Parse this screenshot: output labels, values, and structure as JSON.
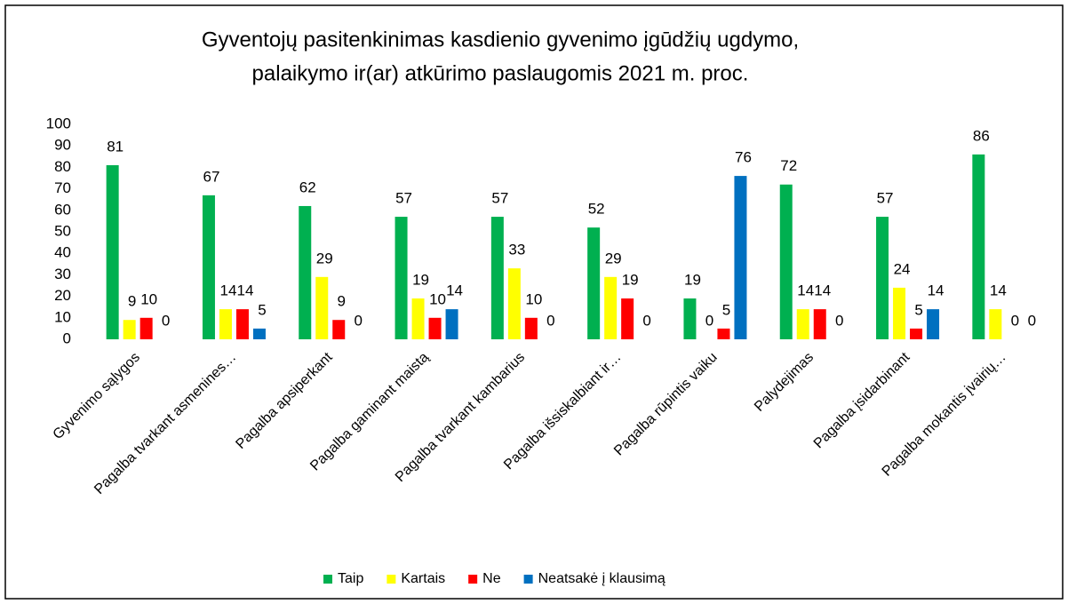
{
  "chart_data": {
    "type": "bar",
    "title": [
      "Gyventojų pasitenkinimas kasdienio gyvenimo įgūdžių ugdymo,",
      "palaikymo ir(ar) atkūrimo paslaugomis 2021 m. proc."
    ],
    "categories": [
      "Gyvenimo sąlygos",
      "Pagalba tvarkant asmenines…",
      "Pagalba apsiperkant",
      "Pagalba gaminant maistą",
      "Pagalba tvarkant kambarius",
      "Pagalba išsiskalbiant ir…",
      "Pagalba rūpintis vaiku",
      "Palydejimas",
      "Pagalba įsidarbinant",
      "Pagalba mokantis įvairių…"
    ],
    "series": [
      {
        "name": "Taip",
        "color": "#00b050",
        "values": [
          81,
          67,
          62,
          57,
          57,
          52,
          19,
          72,
          57,
          86
        ]
      },
      {
        "name": "Kartais",
        "color": "#ffff00",
        "values": [
          9,
          14,
          29,
          19,
          33,
          29,
          0,
          14,
          24,
          14
        ]
      },
      {
        "name": "Ne",
        "color": "#ff0000",
        "values": [
          10,
          14,
          9,
          10,
          10,
          19,
          5,
          14,
          5,
          0
        ]
      },
      {
        "name": "Neatsakė į klausimą",
        "color": "#0070c0",
        "values": [
          0,
          5,
          0,
          14,
          0,
          0,
          76,
          0,
          14,
          0
        ]
      }
    ],
    "ylim": [
      0,
      100
    ],
    "yticks": [
      0,
      10,
      20,
      30,
      40,
      50,
      60,
      70,
      80,
      90,
      100
    ],
    "grid": false,
    "legend": "bottom"
  }
}
